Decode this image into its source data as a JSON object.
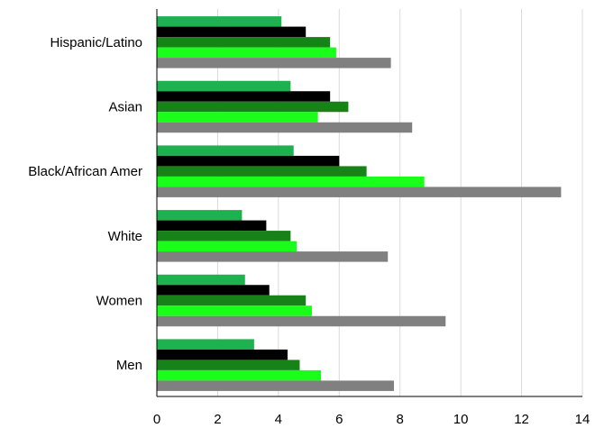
{
  "chart_data": {
    "type": "bar",
    "orientation": "horizontal",
    "title": "",
    "xlabel": "",
    "ylabel": "",
    "categories": [
      "Hispanic/Latino",
      "Asian",
      "Black/African Amer",
      "White",
      "Women",
      "Men"
    ],
    "xlim": [
      0,
      14
    ],
    "xticks": [
      0,
      2,
      4,
      6,
      8,
      10,
      12,
      14
    ],
    "xtick_labels": [
      "0",
      "2",
      "4",
      "6",
      "8",
      "10",
      "12",
      "14"
    ],
    "grid": "vertical",
    "legend": "none",
    "series": [
      {
        "color": "#1fb04f",
        "values": [
          4.1,
          4.4,
          4.5,
          2.8,
          2.9,
          3.2
        ]
      },
      {
        "color": "#000000",
        "values": [
          4.9,
          5.7,
          6.0,
          3.6,
          3.7,
          4.3
        ]
      },
      {
        "color": "#178217",
        "values": [
          5.7,
          6.3,
          6.9,
          4.4,
          4.9,
          4.7
        ]
      },
      {
        "color": "#1aff1a",
        "values": [
          5.9,
          5.3,
          8.8,
          4.6,
          5.1,
          5.4
        ]
      },
      {
        "color": "#808080",
        "values": [
          7.7,
          8.4,
          13.3,
          7.6,
          9.5,
          7.8
        ]
      }
    ]
  }
}
